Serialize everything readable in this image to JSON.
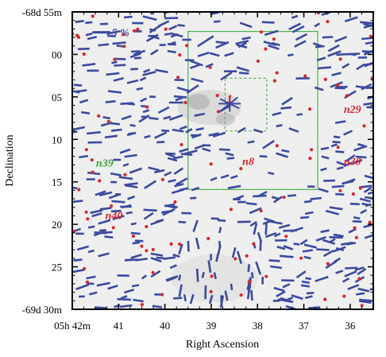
{
  "chart_data": {
    "type": "scatter",
    "title": "",
    "xlabel": "Right Ascension",
    "ylabel": "Declination",
    "x_ticks": [
      {
        "value": 42,
        "label": "05h 42m"
      },
      {
        "value": 41,
        "label": "41"
      },
      {
        "value": 40,
        "label": "40"
      },
      {
        "value": 39,
        "label": "39"
      },
      {
        "value": 38,
        "label": "38"
      },
      {
        "value": 37,
        "label": "37"
      },
      {
        "value": 36,
        "label": "36"
      }
    ],
    "y_ticks": [
      {
        "value": -5,
        "label": "-68d 55m"
      },
      {
        "value": 0,
        "label": "00"
      },
      {
        "value": 5,
        "label": "05"
      },
      {
        "value": 10,
        "label": "10"
      },
      {
        "value": 15,
        "label": "15"
      },
      {
        "value": 20,
        "label": "20"
      },
      {
        "value": 25,
        "label": "25"
      },
      {
        "value": 30,
        "label": "-69d 30m"
      }
    ],
    "xlim": [
      42,
      35.5
    ],
    "ylim": [
      -5,
      30
    ],
    "grid": false,
    "scale_bar": {
      "label": "5 %",
      "x": 41.2,
      "y": -2.6
    },
    "regions": [
      {
        "name": "outer-box",
        "style": "solid",
        "color": "#4caf50",
        "ra_range": [
          39.5,
          36.7
        ],
        "dec_range": [
          -2.7,
          15.9
        ]
      },
      {
        "name": "inner-box",
        "style": "dashed",
        "color": "#4caf50",
        "ra_range": [
          38.7,
          37.8
        ],
        "dec_range": [
          2.8,
          9.0
        ]
      }
    ],
    "annotations": [
      {
        "text": "n29",
        "color": "#d8262e",
        "ra": 35.95,
        "dec": 6.9
      },
      {
        "text": "n30",
        "color": "#d8262e",
        "ra": 35.95,
        "dec": 13.0
      },
      {
        "text": "n8",
        "color": "#d8262e",
        "ra": 38.2,
        "dec": 13.0
      },
      {
        "text": "n39",
        "color": "#3aa33a",
        "ra": 41.3,
        "dec": 13.2
      },
      {
        "text": "n40",
        "color": "#d8262e",
        "ra": 41.1,
        "dec": 19.4
      },
      {
        "text": "1",
        "color": "#d8262e",
        "ra": 38.6,
        "dec": 5.6
      }
    ],
    "polarization_vectors": [],
    "series": [],
    "colors": {
      "vector": "#3b4a9e",
      "red_dot": "#d8262e",
      "box": "#4caf50"
    }
  }
}
